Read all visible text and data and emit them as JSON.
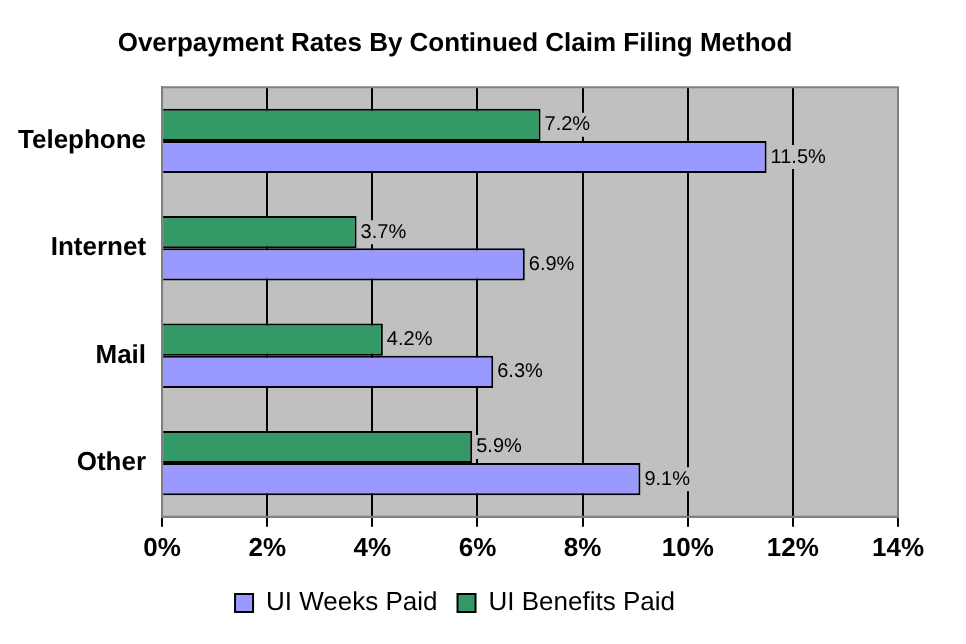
{
  "chart_data": {
    "type": "bar",
    "orientation": "horizontal",
    "title": "Overpayment Rates By Continued Claim Filing Method",
    "categories": [
      "Telephone",
      "Internet",
      "Mail",
      "Other"
    ],
    "series": [
      {
        "name": "UI Benefits Paid",
        "color": "#339966",
        "values": [
          7.2,
          3.7,
          4.2,
          5.9
        ],
        "value_labels": [
          "7.2%",
          "3.7%",
          "4.2%",
          "5.9%"
        ]
      },
      {
        "name": "UI Weeks Paid",
        "color": "#9999ff",
        "values": [
          11.5,
          6.9,
          6.3,
          9.1
        ],
        "value_labels": [
          "11.5%",
          "6.9%",
          "6.3%",
          "9.1%"
        ]
      }
    ],
    "xlim": [
      0,
      14
    ],
    "xticks": [
      {
        "value": 0,
        "label": "0%"
      },
      {
        "value": 2,
        "label": "2%"
      },
      {
        "value": 4,
        "label": "4%"
      },
      {
        "value": 6,
        "label": "6%"
      },
      {
        "value": 8,
        "label": "8%"
      },
      {
        "value": 10,
        "label": "10%"
      },
      {
        "value": 12,
        "label": "12%"
      },
      {
        "value": 14,
        "label": "14%"
      }
    ],
    "grid": "x",
    "legend": "bottom"
  }
}
